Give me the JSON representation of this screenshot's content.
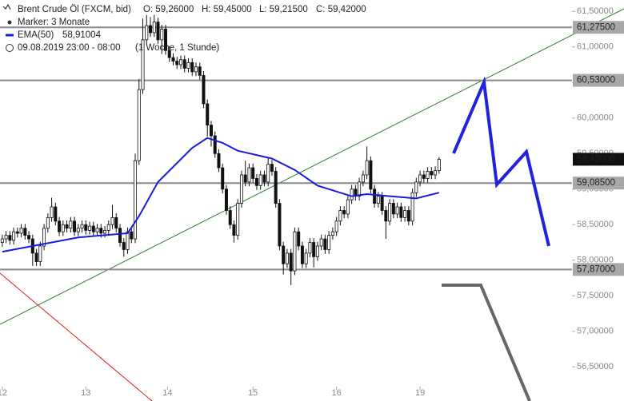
{
  "chart_data": {
    "type": "candlestick",
    "title": "Brent Crude Öl (FXCM, bid)",
    "ohlc_labels": [
      "O: 59,26000",
      "H: 59,45000",
      "L: 59,21500",
      "C: 59,42000"
    ],
    "marker": "Marker: 3 Monate",
    "timeframe": "09.08.2019 23:00 - 08:00",
    "period": "(1 Woche, 1 Stunde)",
    "open": [
      58.25,
      58.3,
      58.35,
      58.28,
      58.4,
      58.38,
      58.45,
      58.35,
      58.3,
      58.1,
      57.98,
      58.2,
      58.45,
      58.6,
      58.75,
      58.55,
      58.4,
      58.5,
      58.45,
      58.55,
      58.4,
      58.45,
      58.5,
      58.42,
      58.48,
      58.4,
      58.45,
      58.38,
      58.42,
      58.5,
      58.6,
      58.45,
      58.25,
      58.15,
      58.4,
      58.3,
      59.4,
      60.4,
      61.1,
      61.3,
      61.2,
      61.35,
      61.1,
      61.25,
      60.95,
      60.85,
      60.8,
      60.75,
      60.82,
      60.7,
      60.78,
      60.65,
      60.72,
      60.6,
      60.2,
      59.9,
      59.75,
      59.5,
      59.3,
      59.0,
      58.7,
      58.5,
      58.35,
      58.8,
      59.2,
      59.1,
      59.3,
      59.15,
      59.05,
      59.2,
      59.1,
      59.35,
      59.25,
      58.8,
      58.2,
      57.95,
      58.1,
      57.85,
      58.4,
      58.2,
      57.95,
      58.1,
      58.25,
      58.05,
      58.2,
      58.3,
      58.15,
      58.35,
      58.4,
      58.55,
      58.7,
      58.65,
      58.85,
      59.0,
      58.9,
      59.1,
      59.2,
      59.4,
      59.0,
      58.8,
      58.9,
      58.7,
      58.55,
      58.8,
      58.65,
      58.75,
      58.6,
      58.7,
      58.55,
      58.95,
      59.1,
      59.2,
      59.15,
      59.25,
      59.2,
      59.26
    ],
    "high": [
      58.36,
      58.41,
      58.41,
      58.46,
      58.46,
      58.51,
      58.51,
      58.41,
      58.36,
      58.16,
      58.26,
      58.51,
      58.66,
      58.88,
      58.81,
      58.61,
      58.56,
      58.56,
      58.61,
      58.61,
      58.51,
      58.56,
      58.56,
      58.54,
      58.54,
      58.51,
      58.51,
      58.48,
      58.56,
      58.78,
      58.66,
      58.51,
      58.31,
      58.46,
      58.46,
      59.5,
      60.55,
      61.4,
      61.45,
      61.42,
      61.45,
      61.41,
      61.31,
      61.31,
      61.01,
      60.91,
      60.86,
      60.88,
      60.88,
      60.84,
      60.84,
      60.78,
      60.78,
      60.66,
      60.26,
      59.96,
      59.81,
      59.56,
      59.36,
      59.06,
      58.76,
      58.56,
      58.86,
      59.26,
      59.4,
      59.36,
      59.36,
      59.21,
      59.26,
      59.26,
      59.45,
      59.41,
      59.31,
      58.86,
      58.26,
      58.16,
      58.16,
      58.46,
      58.46,
      58.26,
      58.16,
      58.31,
      58.31,
      58.26,
      58.36,
      58.36,
      58.41,
      58.46,
      58.61,
      58.76,
      58.76,
      58.91,
      59.06,
      59.06,
      59.16,
      59.26,
      59.6,
      59.46,
      59.06,
      58.96,
      58.96,
      58.76,
      58.86,
      58.86,
      58.81,
      58.81,
      58.76,
      58.76,
      59.01,
      59.16,
      59.26,
      59.26,
      59.31,
      59.31,
      59.32,
      59.45
    ],
    "low": [
      58.19,
      58.24,
      58.22,
      58.22,
      58.32,
      58.32,
      58.29,
      58.24,
      57.92,
      57.92,
      57.92,
      58.14,
      58.39,
      58.54,
      58.49,
      58.34,
      58.34,
      58.39,
      58.39,
      58.34,
      58.34,
      58.39,
      58.36,
      58.36,
      58.34,
      58.34,
      58.32,
      58.32,
      58.36,
      58.44,
      58.39,
      58.19,
      58.05,
      58.09,
      58.24,
      58.24,
      59.34,
      60.34,
      61.04,
      61.14,
      61.14,
      61.04,
      60.9,
      60.89,
      60.79,
      60.74,
      60.69,
      60.69,
      60.64,
      60.64,
      60.59,
      60.59,
      60.54,
      60.14,
      59.74,
      59.6,
      59.44,
      59.24,
      58.94,
      58.64,
      58.44,
      58.25,
      58.29,
      58.74,
      59.04,
      59.04,
      59.09,
      58.99,
      58.99,
      59.04,
      59.04,
      59.19,
      58.74,
      58.14,
      57.8,
      57.89,
      57.65,
      57.79,
      58.14,
      57.89,
      57.89,
      58.04,
      57.9,
      57.99,
      58.14,
      58.09,
      58.09,
      58.29,
      58.34,
      58.49,
      58.59,
      58.59,
      58.79,
      58.84,
      58.84,
      59.04,
      59.14,
      58.94,
      58.74,
      58.74,
      58.64,
      58.3,
      58.49,
      58.59,
      58.59,
      58.54,
      58.54,
      58.49,
      58.49,
      58.89,
      59.04,
      59.09,
      59.09,
      59.14,
      59.14,
      59.215
    ],
    "close": [
      58.3,
      58.35,
      58.28,
      58.4,
      58.38,
      58.45,
      58.35,
      58.3,
      58.1,
      57.98,
      58.2,
      58.45,
      58.6,
      58.75,
      58.55,
      58.4,
      58.5,
      58.45,
      58.55,
      58.4,
      58.45,
      58.5,
      58.42,
      58.48,
      58.4,
      58.45,
      58.38,
      58.42,
      58.5,
      58.6,
      58.45,
      58.25,
      58.15,
      58.4,
      58.3,
      59.4,
      60.4,
      61.1,
      61.3,
      61.2,
      61.35,
      61.1,
      61.25,
      60.95,
      60.85,
      60.8,
      60.75,
      60.82,
      60.7,
      60.78,
      60.65,
      60.72,
      60.6,
      60.2,
      59.9,
      59.75,
      59.5,
      59.3,
      59.0,
      58.7,
      58.5,
      58.35,
      58.8,
      59.2,
      59.1,
      59.3,
      59.15,
      59.05,
      59.2,
      59.1,
      59.35,
      59.25,
      58.8,
      58.2,
      57.95,
      58.1,
      57.85,
      58.4,
      58.2,
      57.95,
      58.1,
      58.25,
      58.05,
      58.2,
      58.3,
      58.15,
      58.35,
      58.4,
      58.55,
      58.7,
      58.65,
      58.85,
      59.0,
      58.9,
      59.1,
      59.2,
      59.4,
      59.0,
      58.8,
      58.9,
      58.7,
      58.55,
      58.8,
      58.65,
      58.75,
      58.6,
      58.7,
      58.55,
      58.95,
      59.1,
      59.2,
      59.15,
      59.25,
      59.2,
      59.26,
      59.42
    ],
    "ema": {
      "name": "EMA(50)",
      "value_label": "58,91004",
      "color": "#1a1ae0",
      "x": [
        0,
        20,
        33,
        36,
        41,
        50,
        54,
        58,
        62,
        71,
        77,
        83,
        92,
        96,
        102,
        109,
        115
      ],
      "values": [
        58.12,
        58.32,
        58.38,
        58.62,
        59.1,
        59.58,
        59.72,
        59.65,
        59.54,
        59.43,
        59.27,
        59.05,
        58.9,
        58.93,
        58.9,
        58.87,
        58.95
      ]
    },
    "levels": [
      {
        "value": 61.275,
        "label": "61,27500"
      },
      {
        "value": 60.53,
        "label": "60,53000"
      },
      {
        "value": 59.085,
        "label": "59,08500"
      },
      {
        "value": 57.87,
        "label": "57,87000"
      }
    ],
    "last_price": {
      "value": 59.42,
      "label": "59,42000"
    },
    "xlim": [
      -0.6,
      150
    ],
    "xticks": [
      {
        "value": 0,
        "label": "12"
      },
      {
        "value": 22,
        "label": "13"
      },
      {
        "value": 43.5,
        "label": "14"
      },
      {
        "value": 66,
        "label": "15"
      },
      {
        "value": 88,
        "label": "16"
      },
      {
        "value": 110,
        "label": "19"
      }
    ],
    "ylim": [
      56.02,
      61.66
    ],
    "yticks": [
      {
        "value": 56.5,
        "label": "56,50000"
      },
      {
        "value": 57,
        "label": "57,00000"
      },
      {
        "value": 57.5,
        "label": "57,50000"
      },
      {
        "value": 58,
        "label": "58,00000"
      },
      {
        "value": 58.5,
        "label": "58,50000"
      },
      {
        "value": 59,
        "label": "59,00000"
      },
      {
        "value": 59.5,
        "label": "59,50000"
      },
      {
        "value": 60,
        "label": "60,00000"
      },
      {
        "value": 60.5,
        "label": "60,50000"
      },
      {
        "value": 61,
        "label": "61,00000"
      },
      {
        "value": 61.5,
        "label": "61,50000"
      }
    ]
  }
}
